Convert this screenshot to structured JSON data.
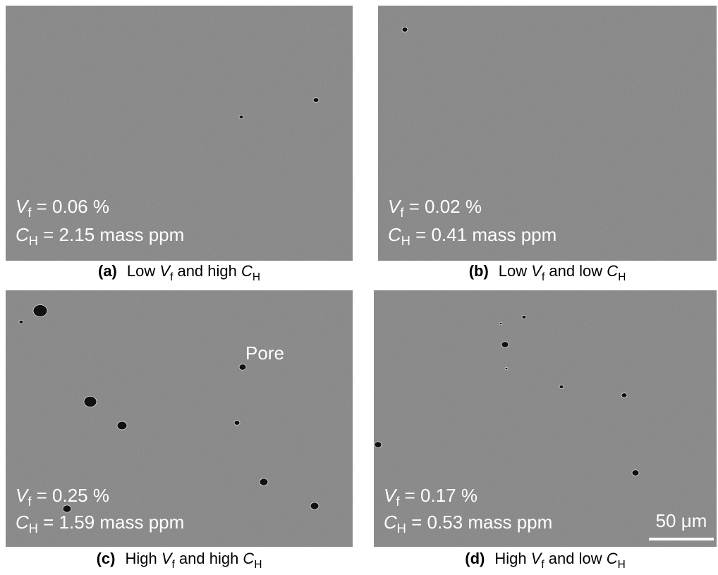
{
  "panels": [
    {
      "label": "(a)",
      "caption": [
        "Low ",
        "V",
        "f",
        " and high ",
        "C",
        "H"
      ],
      "vf": [
        "V",
        "f",
        " = 0.06 %"
      ],
      "ch": [
        "C",
        "H",
        " = 2.15 mass ppm"
      ]
    },
    {
      "label": "(b)",
      "caption": [
        "Low ",
        "V",
        "f",
        " and low ",
        "C",
        "H"
      ],
      "vf": [
        "V",
        "f",
        " = 0.02 %"
      ],
      "ch": [
        "C",
        "H",
        " = 0.41 mass ppm"
      ]
    },
    {
      "label": "(c)",
      "caption": [
        "High ",
        "V",
        "f",
        " and high ",
        "C",
        "H"
      ],
      "vf": [
        "V",
        "f",
        " = 0.25 %"
      ],
      "ch": [
        "C",
        "H",
        " = 1.59 mass ppm"
      ],
      "annotation": "Pore"
    },
    {
      "label": "(d)",
      "caption": [
        "High ",
        "V",
        "f",
        " and low ",
        "C",
        "H"
      ],
      "vf": [
        "V",
        "f",
        " = 0.17 %"
      ],
      "ch": [
        "C",
        "H",
        " = 0.53 mass ppm"
      ],
      "scale_bar": "50 μm"
    }
  ]
}
